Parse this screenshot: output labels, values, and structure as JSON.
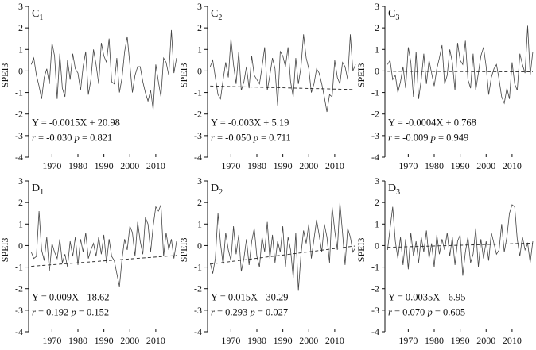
{
  "chart_data": [
    {
      "type": "line",
      "label_main": "C",
      "label_sub": "1",
      "ylabel": "SPEI3",
      "ylim": [
        -4,
        3
      ],
      "xlim": [
        1961,
        2018
      ],
      "yticks": [
        "3",
        "2",
        "1",
        "0",
        "-1",
        "-2",
        "-3",
        "-4"
      ],
      "xticks": [
        "1970",
        "1980",
        "1990",
        "2000",
        "2010"
      ],
      "equation": "Y = -0.0015X + 20.98",
      "r_label": "r",
      "r_value": "= -0.030",
      "p_label": "p",
      "p_value": "= 0.821",
      "trend": {
        "slope": -0.0015,
        "intercept": 20.98
      },
      "x": [
        1962,
        1963,
        1964,
        1965,
        1966,
        1967,
        1968,
        1969,
        1970,
        1971,
        1972,
        1973,
        1974,
        1975,
        1976,
        1977,
        1978,
        1979,
        1980,
        1981,
        1982,
        1983,
        1984,
        1985,
        1986,
        1987,
        1988,
        1989,
        1990,
        1991,
        1992,
        1993,
        1994,
        1995,
        1996,
        1997,
        1998,
        1999,
        2000,
        2001,
        2002,
        2003,
        2004,
        2005,
        2006,
        2007,
        2008,
        2009,
        2010,
        2011,
        2012,
        2013,
        2014,
        2015,
        2016,
        2017,
        2018
      ],
      "values": [
        0.3,
        0.6,
        -0.2,
        -0.7,
        -1.3,
        -0.3,
        0.1,
        -0.6,
        1.3,
        0.7,
        -1.3,
        0.8,
        -0.8,
        -1.2,
        0.5,
        -0.4,
        0.8,
        0.1,
        -0.1,
        -0.9,
        0.2,
        0.9,
        -1.1,
        -0.4,
        1.0,
        0.3,
        -0.6,
        1.3,
        0.7,
        0.4,
        1.5,
        -0.5,
        -0.6,
        0.6,
        -1.0,
        -0.3,
        0.9,
        1.6,
        0.3,
        -1.0,
        -0.2,
        0.2,
        0.2,
        -0.5,
        -1.0,
        -1.4,
        -0.9,
        -1.8,
        0.3,
        -0.5,
        -1.2,
        0.6,
        0.4,
        -0.2,
        1.9,
        -0.1,
        0.6
      ]
    },
    {
      "type": "line",
      "label_main": "C",
      "label_sub": "2",
      "ylabel": "SPEI3",
      "ylim": [
        -4,
        3
      ],
      "xlim": [
        1961,
        2018
      ],
      "yticks": [
        "3",
        "2",
        "1",
        "0",
        "-1",
        "-2",
        "-3",
        "-4"
      ],
      "xticks": [
        "1970",
        "1980",
        "1990",
        "2000",
        "2010"
      ],
      "equation": "Y = -0.003X + 5.19",
      "r_label": "r",
      "r_value": "= -0.050",
      "p_label": "p",
      "p_value": "= 0.711",
      "trend": {
        "slope": -0.003,
        "intercept": 5.19
      },
      "x": [
        1962,
        1963,
        1964,
        1965,
        1966,
        1967,
        1968,
        1969,
        1970,
        1971,
        1972,
        1973,
        1974,
        1975,
        1976,
        1977,
        1978,
        1979,
        1980,
        1981,
        1982,
        1983,
        1984,
        1985,
        1986,
        1987,
        1988,
        1989,
        1990,
        1991,
        1992,
        1993,
        1994,
        1995,
        1996,
        1997,
        1998,
        1999,
        2000,
        2001,
        2002,
        2003,
        2004,
        2005,
        2006,
        2007,
        2008,
        2009,
        2010,
        2011,
        2012,
        2013,
        2014,
        2015,
        2016,
        2017,
        2018
      ],
      "values": [
        0.2,
        0.5,
        -0.3,
        -1.1,
        -1.3,
        -0.4,
        0.4,
        -0.3,
        1.5,
        0.3,
        -0.6,
        0.9,
        -0.9,
        -0.5,
        0.2,
        -0.8,
        0.7,
        -0.2,
        -0.4,
        -0.6,
        0.2,
        1.1,
        -0.9,
        -0.2,
        0.6,
        0.1,
        -1.6,
        0.9,
        0.7,
        0.2,
        1.1,
        -0.5,
        -1.2,
        0.6,
        -0.6,
        0.2,
        1.7,
        0.6,
        0.1,
        -1.0,
        -0.6,
        0.1,
        -0.1,
        -0.6,
        -1.2,
        -1.9,
        -1.1,
        -1.2,
        0.5,
        -0.3,
        -0.6,
        0.4,
        0.2,
        -0.4,
        1.7,
        0.0,
        0.3
      ]
    },
    {
      "type": "line",
      "label_main": "C",
      "label_sub": "3",
      "ylabel": "SPEI3",
      "ylim": [
        -4,
        3
      ],
      "xlim": [
        1961,
        2018
      ],
      "yticks": [
        "3",
        "2",
        "1",
        "0",
        "-1",
        "-2",
        "-3",
        "-4"
      ],
      "xticks": [
        "1970",
        "1980",
        "1990",
        "2000",
        "2010"
      ],
      "equation": "Y = -0.0004X + 0.768",
      "r_label": "r",
      "r_value": "= -0.009",
      "p_label": "p",
      "p_value": "= 0.949",
      "trend": {
        "slope": -0.0004,
        "intercept": 0.768
      },
      "x": [
        1962,
        1963,
        1964,
        1965,
        1966,
        1967,
        1968,
        1969,
        1970,
        1971,
        1972,
        1973,
        1974,
        1975,
        1976,
        1977,
        1978,
        1979,
        1980,
        1981,
        1982,
        1983,
        1984,
        1985,
        1986,
        1987,
        1988,
        1989,
        1990,
        1991,
        1992,
        1993,
        1994,
        1995,
        1996,
        1997,
        1998,
        1999,
        2000,
        2001,
        2002,
        2003,
        2004,
        2005,
        2006,
        2007,
        2008,
        2009,
        2010,
        2011,
        2012,
        2013,
        2014,
        2015,
        2016,
        2017,
        2018
      ],
      "values": [
        0.3,
        0.5,
        -0.4,
        -0.2,
        -1.0,
        -0.5,
        0.2,
        -0.8,
        1.1,
        0.4,
        -1.2,
        0.9,
        -1.3,
        -0.4,
        0.8,
        -0.6,
        0.5,
        -0.1,
        -0.7,
        0.1,
        0.6,
        1.2,
        -0.6,
        -0.2,
        1.0,
        0.4,
        -0.9,
        1.3,
        0.5,
        0.3,
        1.4,
        -0.4,
        -0.8,
        0.8,
        -0.9,
        -0.1,
        0.7,
        1.1,
        0.2,
        -1.1,
        -0.3,
        0.1,
        0.3,
        -0.4,
        -1.2,
        -1.5,
        -0.8,
        -1.3,
        0.4,
        -0.6,
        -0.9,
        0.8,
        0.3,
        -0.1,
        2.1,
        -0.2,
        0.9
      ]
    },
    {
      "type": "line",
      "label_main": "D",
      "label_sub": "1",
      "ylabel": "SPEI3",
      "ylim": [
        -4,
        3
      ],
      "xlim": [
        1961,
        2018
      ],
      "yticks": [
        "3",
        "2",
        "1",
        "0",
        "-1",
        "-2",
        "-3",
        "-4"
      ],
      "xticks": [
        "1970",
        "1980",
        "1990",
        "2000",
        "2010"
      ],
      "equation": "Y = 0.009X - 18.62",
      "r_label": "r",
      "r_value": "= 0.192",
      "p_label": "p",
      "p_value": "= 0.152",
      "trend": {
        "slope": 0.009,
        "intercept": -18.62
      },
      "x": [
        1962,
        1963,
        1964,
        1965,
        1966,
        1967,
        1968,
        1969,
        1970,
        1971,
        1972,
        1973,
        1974,
        1975,
        1976,
        1977,
        1978,
        1979,
        1980,
        1981,
        1982,
        1983,
        1984,
        1985,
        1986,
        1987,
        1988,
        1989,
        1990,
        1991,
        1992,
        1993,
        1994,
        1995,
        1996,
        1997,
        1998,
        1999,
        2000,
        2001,
        2002,
        2003,
        2004,
        2005,
        2006,
        2007,
        2008,
        2009,
        2010,
        2011,
        2012,
        2013,
        2014,
        2015,
        2016,
        2017,
        2018
      ],
      "values": [
        -0.3,
        -0.6,
        -0.5,
        1.6,
        -0.2,
        -0.7,
        0.4,
        -1.2,
        0.1,
        -0.3,
        -0.6,
        0.3,
        -0.8,
        -0.4,
        -1.0,
        0.2,
        -0.5,
        0.4,
        -0.9,
        0.3,
        -0.3,
        0.6,
        -0.6,
        -0.2,
        0.1,
        -0.5,
        0.4,
        -0.4,
        0.5,
        -0.8,
        0.3,
        -0.5,
        -0.7,
        -1.3,
        -1.9,
        -0.6,
        0.3,
        -0.2,
        0.9,
        0.6,
        -0.5,
        1.1,
        0.2,
        -0.4,
        1.3,
        1.0,
        -0.3,
        0.9,
        1.8,
        1.6,
        1.9,
        -0.5,
        0.6,
        -0.2,
        0.3,
        -0.6,
        0.2
      ]
    },
    {
      "type": "line",
      "label_main": "D",
      "label_sub": "2",
      "ylabel": "SPEI3",
      "ylim": [
        -4,
        3
      ],
      "xlim": [
        1961,
        2018
      ],
      "yticks": [
        "3",
        "2",
        "1",
        "0",
        "-1",
        "-2",
        "-3",
        "-4"
      ],
      "xticks": [
        "1970",
        "1980",
        "1990",
        "2000",
        "2010"
      ],
      "equation": "Y = 0.015X - 30.29",
      "r_label": "r",
      "r_value": "= 0.293",
      "p_label": "p",
      "p_value": "= 0.027",
      "trend": {
        "slope": 0.015,
        "intercept": -30.29
      },
      "x": [
        1962,
        1963,
        1964,
        1965,
        1966,
        1967,
        1968,
        1969,
        1970,
        1971,
        1972,
        1973,
        1974,
        1975,
        1976,
        1977,
        1978,
        1979,
        1980,
        1981,
        1982,
        1983,
        1984,
        1985,
        1986,
        1987,
        1988,
        1989,
        1990,
        1991,
        1992,
        1993,
        1994,
        1995,
        1996,
        1997,
        1998,
        1999,
        2000,
        2001,
        2002,
        2003,
        2004,
        2005,
        2006,
        2007,
        2008,
        2009,
        2010,
        2011,
        2012,
        2013,
        2014,
        2015,
        2016,
        2017,
        2018
      ],
      "values": [
        -0.8,
        -1.3,
        -0.6,
        1.5,
        0.1,
        -0.9,
        0.6,
        -0.2,
        -0.7,
        0.9,
        -0.4,
        0.5,
        -1.2,
        -0.6,
        0.3,
        -0.9,
        0.2,
        0.8,
        -0.5,
        -1.0,
        0.4,
        -0.3,
        1.1,
        -0.6,
        0.5,
        -0.8,
        0.2,
        -0.3,
        0.9,
        -1.0,
        0.4,
        -0.2,
        -1.5,
        0.6,
        -2.1,
        -0.4,
        0.7,
        0.1,
        1.0,
        -0.6,
        0.3,
        1.2,
        0.5,
        -0.3,
        1.0,
        0.4,
        -0.8,
        1.8,
        0.7,
        -0.2,
        2.0,
        0.6,
        -0.9,
        0.8,
        0.4,
        -0.3,
        -0.1
      ]
    },
    {
      "type": "line",
      "label_main": "D",
      "label_sub": "3",
      "ylabel": "SPEI3",
      "ylim": [
        -4,
        3
      ],
      "xlim": [
        1961,
        2018
      ],
      "yticks": [
        "3",
        "2",
        "1",
        "0",
        "-1",
        "-2",
        "-3",
        "-4"
      ],
      "xticks": [
        "1970",
        "1980",
        "1990",
        "2000",
        "2010"
      ],
      "equation": "Y = 0.0035X - 6.95",
      "r_label": "r",
      "r_value": "= 0.070",
      "p_label": "p",
      "p_value": "= 0.605",
      "trend": {
        "slope": 0.0035,
        "intercept": -6.95
      },
      "x": [
        1962,
        1963,
        1964,
        1965,
        1966,
        1967,
        1968,
        1969,
        1970,
        1971,
        1972,
        1973,
        1974,
        1975,
        1976,
        1977,
        1978,
        1979,
        1980,
        1981,
        1982,
        1983,
        1984,
        1985,
        1986,
        1987,
        1988,
        1989,
        1990,
        1991,
        1992,
        1993,
        1994,
        1995,
        1996,
        1997,
        1998,
        1999,
        2000,
        2001,
        2002,
        2003,
        2004,
        2005,
        2006,
        2007,
        2008,
        2009,
        2010,
        2011,
        2012,
        2013,
        2014,
        2015,
        2016,
        2017,
        2018
      ],
      "values": [
        -0.2,
        0.8,
        1.8,
        0.2,
        -0.6,
        0.4,
        -0.9,
        0.3,
        -1.1,
        0.6,
        -0.5,
        0.2,
        -0.8,
        0.4,
        -0.3,
        0.7,
        -0.6,
        0.1,
        -1.0,
        0.5,
        -0.4,
        0.3,
        -0.2,
        0.6,
        -0.5,
        0.4,
        -0.9,
        0.2,
        0.5,
        -1.4,
        -0.3,
        0.4,
        -0.8,
        -0.4,
        0.8,
        -1.0,
        0.3,
        -0.6,
        0.2,
        -0.7,
        0.6,
        0.1,
        -0.4,
        -0.2,
        1.0,
        -0.3,
        0.4,
        1.5,
        1.9,
        1.8,
        0.3,
        -0.5,
        0.4,
        -0.2,
        0.1,
        -0.8,
        0.2
      ]
    }
  ]
}
